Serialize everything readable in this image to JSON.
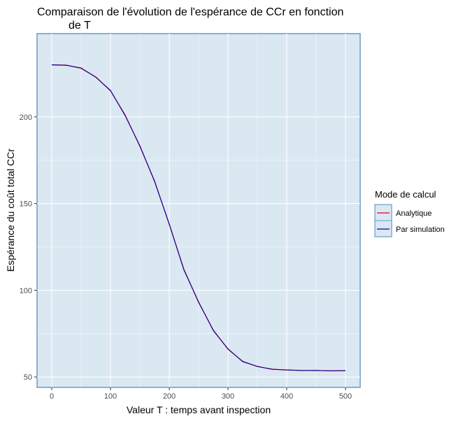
{
  "chart_data": {
    "type": "line",
    "title_line1": "Comparaison de l'évolution de l'espérance de CCr en fonction",
    "title_line2": "de T",
    "xlabel": "Valeur T : temps avant inspection",
    "ylabel": "Espérance du coût total CCr",
    "xlim": [
      -25,
      525
    ],
    "ylim": [
      44,
      248
    ],
    "x_ticks": [
      0,
      100,
      200,
      300,
      400,
      500
    ],
    "x_tick_labels": [
      "0",
      "100",
      "200",
      "300",
      "400",
      "500"
    ],
    "y_ticks": [
      50,
      100,
      150,
      200
    ],
    "y_tick_labels": [
      "50",
      "100",
      "150",
      "200"
    ],
    "grid": true,
    "panel_background": "#dae8f2",
    "panel_border": "#6a9bc3",
    "legend": {
      "title": "Mode de calcul",
      "position": "right"
    },
    "series": [
      {
        "name": "Analytique",
        "color": "#e0001b",
        "x": [
          0,
          25,
          50,
          75,
          100,
          125,
          150,
          175,
          200,
          225,
          250,
          275,
          300,
          325,
          350,
          375,
          400,
          425,
          450,
          475,
          500
        ],
        "y": [
          230,
          229.8,
          228,
          223,
          215,
          201,
          183,
          163,
          138,
          112,
          93,
          77,
          66,
          59,
          56,
          54.5,
          54,
          53.8,
          53.7,
          53.6,
          53.6
        ]
      },
      {
        "name": "Par simulation",
        "color": "#0000a8",
        "x": [
          0,
          25,
          50,
          75,
          100,
          125,
          150,
          175,
          200,
          225,
          250,
          275,
          300,
          325,
          350,
          375,
          400,
          425,
          450,
          475,
          500
        ],
        "y": [
          230,
          229.7,
          228.2,
          222.8,
          215.3,
          200.6,
          183.4,
          162.7,
          138.3,
          111.6,
          93.3,
          76.7,
          66.2,
          58.8,
          56.1,
          54.4,
          54.1,
          53.7,
          53.8,
          53.5,
          53.7
        ]
      }
    ]
  }
}
